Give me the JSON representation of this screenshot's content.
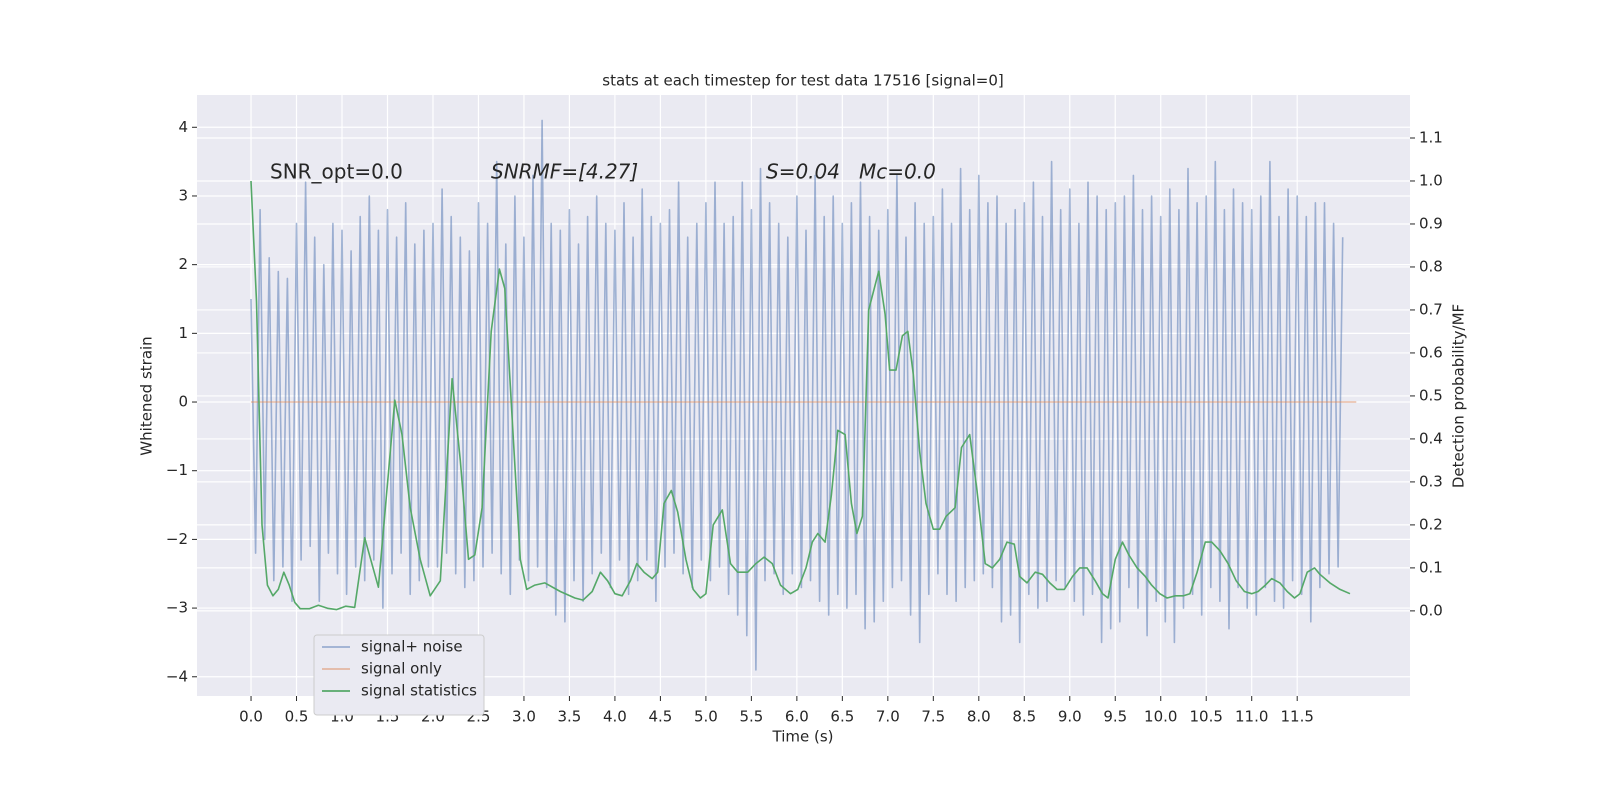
{
  "chart_data": {
    "type": "line",
    "title": "stats at each timestep for test data 17516 [signal=0]",
    "xlabel": "Time (s)",
    "ylabel": "Whitened strain",
    "y2label": "Detection probability/MF",
    "annotations": [
      "SNR_opt=0.0",
      "SNRMF=[4.27]",
      "S=0.04",
      "Mc=0.0"
    ],
    "xlim": [
      -0.594,
      12.74
    ],
    "ylim": [
      -4.28,
      4.47
    ],
    "y2lim": [
      -0.198,
      1.2
    ],
    "xticks": [
      {
        "value": 0,
        "label": "0.0"
      },
      {
        "value": 0.5,
        "label": "0.5"
      },
      {
        "value": 1,
        "label": "1.0"
      },
      {
        "value": 1.5,
        "label": "1.5"
      },
      {
        "value": 2,
        "label": "2.0"
      },
      {
        "value": 2.5,
        "label": "2.5"
      },
      {
        "value": 3,
        "label": "3.0"
      },
      {
        "value": 3.5,
        "label": "3.5"
      },
      {
        "value": 4,
        "label": "4.0"
      },
      {
        "value": 4.5,
        "label": "4.5"
      },
      {
        "value": 5,
        "label": "5.0"
      },
      {
        "value": 5.5,
        "label": "5.5"
      },
      {
        "value": 6,
        "label": "6.0"
      },
      {
        "value": 6.5,
        "label": "6.5"
      },
      {
        "value": 7,
        "label": "7.0"
      },
      {
        "value": 7.5,
        "label": "7.5"
      },
      {
        "value": 8,
        "label": "8.0"
      },
      {
        "value": 8.5,
        "label": "8.5"
      },
      {
        "value": 9,
        "label": "9.0"
      },
      {
        "value": 9.5,
        "label": "9.5"
      },
      {
        "value": 10,
        "label": "10.0"
      },
      {
        "value": 10.5,
        "label": "10.5"
      },
      {
        "value": 11,
        "label": "11.0"
      },
      {
        "value": 11.5,
        "label": "11.5"
      }
    ],
    "yticks": [
      {
        "value": -4,
        "label": "−4"
      },
      {
        "value": -3,
        "label": "−3"
      },
      {
        "value": -2,
        "label": "−2"
      },
      {
        "value": -1,
        "label": "−1"
      },
      0,
      1,
      2,
      3,
      4
    ],
    "y2ticks": [
      {
        "value": 0,
        "label": "0.0"
      },
      {
        "value": 0.1,
        "label": "0.1"
      },
      {
        "value": 0.2,
        "label": "0.2"
      },
      {
        "value": 0.3,
        "label": "0.3"
      },
      {
        "value": 0.4,
        "label": "0.4"
      },
      {
        "value": 0.5,
        "label": "0.5"
      },
      {
        "value": 0.6,
        "label": "0.6"
      },
      {
        "value": 0.7,
        "label": "0.7"
      },
      {
        "value": 0.8,
        "label": "0.8"
      },
      {
        "value": 0.9,
        "label": "0.9"
      },
      {
        "value": 1.0,
        "label": "1.0"
      },
      {
        "value": 1.1,
        "label": "1.1"
      }
    ],
    "grid": true,
    "legend": "lower left",
    "series": [
      {
        "name": "signal+ noise",
        "color": "#4c72b0",
        "opacity": 0.5,
        "x": [
          0,
          0.05,
          0.1,
          0.15,
          0.2,
          0.25,
          0.3,
          0.35,
          0.4,
          0.45,
          0.5,
          0.55,
          0.6,
          0.65,
          0.7,
          0.75,
          0.8,
          0.85,
          0.9,
          0.95,
          1,
          1.05,
          1.1,
          1.15,
          1.2,
          1.25,
          1.3,
          1.35,
          1.4,
          1.45,
          1.5,
          1.55,
          1.6,
          1.65,
          1.7,
          1.75,
          1.8,
          1.85,
          1.9,
          1.95,
          2,
          2.05,
          2.1,
          2.15,
          2.2,
          2.25,
          2.3,
          2.35,
          2.4,
          2.45,
          2.5,
          2.55,
          2.6,
          2.65,
          2.7,
          2.75,
          2.8,
          2.85,
          2.9,
          2.95,
          3,
          3.05,
          3.1,
          3.15,
          3.2,
          3.25,
          3.3,
          3.35,
          3.4,
          3.45,
          3.5,
          3.55,
          3.6,
          3.65,
          3.7,
          3.75,
          3.8,
          3.85,
          3.9,
          3.95,
          4,
          4.05,
          4.1,
          4.15,
          4.2,
          4.25,
          4.3,
          4.35,
          4.4,
          4.45,
          4.5,
          4.55,
          4.6,
          4.65,
          4.7,
          4.75,
          4.8,
          4.85,
          4.9,
          4.95,
          5,
          5.05,
          5.1,
          5.15,
          5.2,
          5.25,
          5.3,
          5.35,
          5.4,
          5.45,
          5.5,
          5.55,
          5.6,
          5.65,
          5.7,
          5.75,
          5.8,
          5.85,
          5.9,
          5.95,
          6,
          6.05,
          6.1,
          6.15,
          6.2,
          6.25,
          6.3,
          6.35,
          6.4,
          6.45,
          6.5,
          6.55,
          6.6,
          6.65,
          6.7,
          6.75,
          6.8,
          6.85,
          6.9,
          6.95,
          7,
          7.05,
          7.1,
          7.15,
          7.2,
          7.25,
          7.3,
          7.35,
          7.4,
          7.45,
          7.5,
          7.55,
          7.6,
          7.65,
          7.7,
          7.75,
          7.8,
          7.85,
          7.9,
          7.95,
          8,
          8.05,
          8.1,
          8.15,
          8.2,
          8.25,
          8.3,
          8.35,
          8.4,
          8.45,
          8.5,
          8.55,
          8.6,
          8.65,
          8.7,
          8.75,
          8.8,
          8.85,
          8.9,
          8.95,
          9,
          9.05,
          9.1,
          9.15,
          9.2,
          9.25,
          9.3,
          9.35,
          9.4,
          9.45,
          9.5,
          9.55,
          9.6,
          9.65,
          9.7,
          9.75,
          9.8,
          9.85,
          9.9,
          9.95,
          10,
          10.05,
          10.1,
          10.15,
          10.2,
          10.25,
          10.3,
          10.35,
          10.4,
          10.45,
          10.5,
          10.55,
          10.6,
          10.65,
          10.7,
          10.75,
          10.8,
          10.85,
          10.9,
          10.95,
          11,
          11.05,
          11.1,
          11.15,
          11.2,
          11.25,
          11.3,
          11.35,
          11.4,
          11.45,
          11.5,
          11.55,
          11.6,
          11.65,
          11.7,
          11.75,
          11.8,
          11.85,
          11.9,
          11.95,
          12
        ],
        "values": [
          1.5,
          -2.2,
          2.8,
          -2.0,
          2.1,
          -2.6,
          1.9,
          -2.4,
          1.8,
          -2.9,
          2.6,
          -2.3,
          3.2,
          -2.1,
          2.4,
          -2.9,
          2.0,
          -2.2,
          2.6,
          -2.5,
          2.5,
          -2.8,
          2.2,
          -2.4,
          2.7,
          -2.6,
          3.0,
          -2.3,
          2.5,
          -3.0,
          2.8,
          -2.5,
          2.4,
          -2.2,
          2.9,
          -2.8,
          2.3,
          -2.6,
          2.5,
          -2.4,
          2.6,
          -2.4,
          3.1,
          -2.2,
          2.7,
          -2.5,
          2.4,
          -2.7,
          2.2,
          -2.6,
          2.9,
          -2.4,
          2.6,
          -2.2,
          3.5,
          -2.5,
          2.3,
          -2.8,
          3.0,
          -2.3,
          2.4,
          -2.6,
          3.3,
          -2.4,
          4.1,
          -2.7,
          2.6,
          -3.1,
          2.5,
          -3.2,
          2.8,
          -2.6,
          2.3,
          -2.9,
          2.7,
          -2.5,
          3.0,
          -2.2,
          2.6,
          -2.7,
          2.5,
          -2.3,
          2.9,
          -2.8,
          2.4,
          -2.6,
          3.1,
          -2.3,
          2.7,
          -2.9,
          2.6,
          -2.4,
          2.8,
          -2.2,
          3.2,
          -2.5,
          2.4,
          -2.7,
          2.6,
          -2.3,
          2.9,
          -2.6,
          3.2,
          -2.4,
          2.6,
          -2.8,
          2.7,
          -3.1,
          3.2,
          -3.4,
          2.8,
          -3.9,
          3.4,
          -2.6,
          2.9,
          -2.5,
          2.6,
          -2.8,
          2.4,
          -2.5,
          3.0,
          -2.7,
          2.5,
          -2.6,
          3.3,
          -2.9,
          2.7,
          -3.1,
          3.0,
          -2.8,
          2.6,
          -3.0,
          2.9,
          -2.8,
          3.2,
          -3.3,
          2.7,
          -3.2,
          2.5,
          -2.9,
          2.8,
          -2.7,
          3.3,
          -2.6,
          2.4,
          -3.1,
          2.9,
          -3.5,
          2.6,
          -2.8,
          2.7,
          -2.5,
          3.1,
          -2.8,
          2.6,
          -2.9,
          3.4,
          -2.7,
          2.8,
          -2.6,
          3.3,
          -2.5,
          2.9,
          -2.7,
          3.0,
          -3.2,
          2.6,
          -3.1,
          2.8,
          -3.5,
          2.9,
          -2.8,
          3.2,
          -3.0,
          2.7,
          -2.9,
          3.5,
          -2.6,
          2.8,
          -2.7,
          3.1,
          -2.9,
          2.6,
          -3.1,
          3.2,
          -2.8,
          3.0,
          -3.5,
          2.8,
          -3.3,
          2.9,
          -3.2,
          3.0,
          -2.7,
          3.3,
          -3.0,
          2.8,
          -3.4,
          3.0,
          -2.9,
          2.7,
          -3.2,
          3.1,
          -3.5,
          2.8,
          -3.0,
          3.4,
          -2.8,
          2.9,
          -3.1,
          3.0,
          -2.7,
          3.5,
          -2.9,
          2.8,
          -3.3,
          3.1,
          -2.7,
          2.9,
          -3.0,
          2.8,
          -3.1,
          3.0,
          -2.7,
          3.5,
          -2.9,
          2.7,
          -3.0,
          3.1,
          -2.6,
          3.0,
          -2.8,
          2.7,
          -3.2,
          2.9,
          -2.7,
          2.9,
          -2.5,
          2.6,
          -2.4,
          2.4
        ]
      },
      {
        "name": "signal only",
        "color": "#dd8452",
        "opacity": 0.5,
        "x": [
          0,
          12.15
        ],
        "values": [
          0,
          0
        ]
      },
      {
        "name": "signal statistics",
        "color": "#55a868",
        "opacity": 1,
        "axis": "y2",
        "x": [
          0,
          0.06,
          0.12,
          0.18,
          0.24,
          0.3,
          0.36,
          0.42,
          0.48,
          0.54,
          0.64,
          0.74,
          0.84,
          0.94,
          1.04,
          1.14,
          1.25,
          1.4,
          1.58,
          1.66,
          1.75,
          1.86,
          1.97,
          2.08,
          2.21,
          2.3,
          2.39,
          2.46,
          2.54,
          2.64,
          2.73,
          2.79,
          2.87,
          2.96,
          3.03,
          3.12,
          3.23,
          3.4,
          3.56,
          3.65,
          3.75,
          3.84,
          3.92,
          4.0,
          4.08,
          4.17,
          4.24,
          4.32,
          4.41,
          4.47,
          4.54,
          4.62,
          4.69,
          4.78,
          4.86,
          4.94,
          5.0,
          5.08,
          5.18,
          5.27,
          5.35,
          5.46,
          5.55,
          5.64,
          5.73,
          5.82,
          5.93,
          6.01,
          6.1,
          6.17,
          6.23,
          6.31,
          6.38,
          6.45,
          6.53,
          6.6,
          6.66,
          6.72,
          6.79,
          6.9,
          6.97,
          7.02,
          7.09,
          7.16,
          7.22,
          7.28,
          7.35,
          7.42,
          7.5,
          7.57,
          7.64,
          7.74,
          7.81,
          7.9,
          7.98,
          8.07,
          8.15,
          8.23,
          8.31,
          8.39,
          8.45,
          8.53,
          8.62,
          8.7,
          8.78,
          8.86,
          8.94,
          9.03,
          9.11,
          9.19,
          9.28,
          9.36,
          9.42,
          9.5,
          9.58,
          9.65,
          9.74,
          9.83,
          9.9,
          9.99,
          10.07,
          10.16,
          10.25,
          10.32,
          10.4,
          10.49,
          10.56,
          10.65,
          10.74,
          10.83,
          10.92,
          11.0,
          11.07,
          11.15,
          11.22,
          11.31,
          11.39,
          11.47,
          11.53,
          11.61,
          11.69,
          11.75,
          11.86,
          11.97,
          12.08
        ],
        "values": [
          1.0,
          0.72,
          0.2,
          0.06,
          0.035,
          0.05,
          0.09,
          0.06,
          0.02,
          0.005,
          0.005,
          0.013,
          0.006,
          0.003,
          0.011,
          0.008,
          0.17,
          0.055,
          0.49,
          0.41,
          0.24,
          0.12,
          0.035,
          0.07,
          0.54,
          0.35,
          0.12,
          0.13,
          0.24,
          0.65,
          0.795,
          0.75,
          0.45,
          0.12,
          0.05,
          0.06,
          0.065,
          0.045,
          0.03,
          0.025,
          0.045,
          0.09,
          0.07,
          0.04,
          0.035,
          0.07,
          0.11,
          0.09,
          0.075,
          0.09,
          0.25,
          0.28,
          0.23,
          0.12,
          0.05,
          0.03,
          0.04,
          0.2,
          0.235,
          0.11,
          0.09,
          0.09,
          0.11,
          0.125,
          0.11,
          0.06,
          0.04,
          0.05,
          0.1,
          0.16,
          0.18,
          0.16,
          0.27,
          0.42,
          0.41,
          0.25,
          0.18,
          0.22,
          0.7,
          0.79,
          0.69,
          0.56,
          0.56,
          0.64,
          0.65,
          0.55,
          0.37,
          0.25,
          0.19,
          0.19,
          0.22,
          0.24,
          0.38,
          0.41,
          0.28,
          0.11,
          0.1,
          0.12,
          0.16,
          0.155,
          0.08,
          0.065,
          0.09,
          0.085,
          0.065,
          0.05,
          0.05,
          0.08,
          0.1,
          0.1,
          0.07,
          0.04,
          0.03,
          0.12,
          0.16,
          0.13,
          0.1,
          0.08,
          0.06,
          0.04,
          0.03,
          0.035,
          0.035,
          0.04,
          0.09,
          0.16,
          0.16,
          0.14,
          0.11,
          0.07,
          0.045,
          0.04,
          0.045,
          0.06,
          0.075,
          0.065,
          0.045,
          0.03,
          0.04,
          0.09,
          0.1,
          0.085,
          0.065,
          0.05,
          0.04
        ]
      }
    ]
  }
}
